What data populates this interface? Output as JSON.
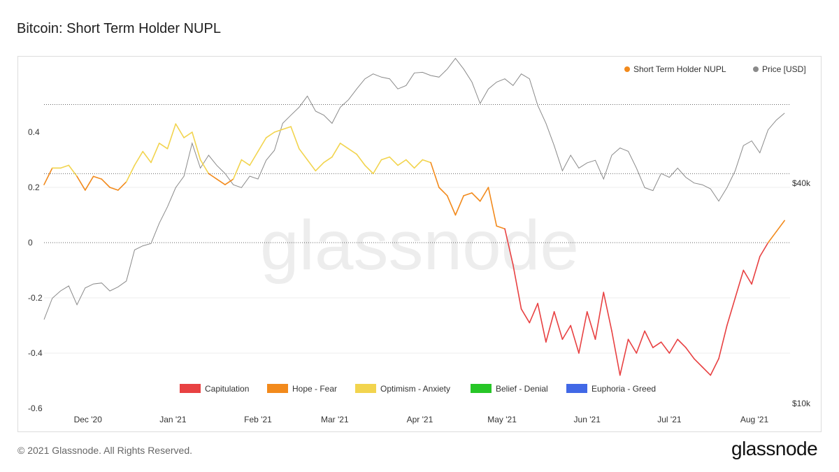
{
  "page": {
    "title": "Bitcoin: Short Term Holder NUPL",
    "copyright": "© 2021 Glassnode. All Rights Reserved.",
    "brand": "glassnode",
    "watermark": "glassnode"
  },
  "colors": {
    "price": "#8a8a8a",
    "capitulation": "#e84142",
    "hope_fear": "#f28a1c",
    "optimism_anxiety": "#f2d44e",
    "belief_denial": "#27c627",
    "euphoria_greed": "#4168e6",
    "grid": "#333333"
  },
  "chart_data": {
    "type": "line",
    "title": "Bitcoin: Short Term Holder NUPL",
    "x_axis": {
      "range": [
        "2020-11-15",
        "2021-08-14"
      ],
      "ticks": [
        "Dec '20",
        "Jan '21",
        "Feb '21",
        "Mar '21",
        "Apr '21",
        "May '21",
        "Jun '21",
        "Jul '21",
        "Aug '21"
      ]
    },
    "y_left": {
      "range": [
        -0.6,
        0.6
      ],
      "ticks": [
        "0.4",
        "0.2",
        "0",
        "-0.2",
        "-0.4",
        "-0.6"
      ]
    },
    "y_right": {
      "scale": "log",
      "range_usd": [
        10000,
        50000
      ],
      "ticks": [
        "$40k",
        "$10k"
      ]
    },
    "grid": "dotted horizontal",
    "legend_top": [
      "Short Term Holder NUPL",
      "Price [USD]"
    ],
    "legend_bottom": [
      "Capitulation",
      "Hope - Fear",
      "Optimism - Anxiety",
      "Belief - Denial",
      "Euphoria - Greed"
    ],
    "zones": [
      {
        "name": "Capitulation",
        "max": 0
      },
      {
        "name": "Hope - Fear",
        "min": 0,
        "max": 0.25
      },
      {
        "name": "Optimism - Anxiety",
        "min": 0.25,
        "max": 0.5
      },
      {
        "name": "Belief - Denial",
        "min": 0.5,
        "max": 0.75
      },
      {
        "name": "Euphoria - Greed",
        "min": 0.75
      }
    ],
    "series": [
      {
        "name": "Short Term Holder NUPL",
        "x": [
          "2020-11-15",
          "2020-11-18",
          "2020-11-21",
          "2020-11-24",
          "2020-11-27",
          "2020-11-30",
          "2020-12-03",
          "2020-12-06",
          "2020-12-09",
          "2020-12-12",
          "2020-12-15",
          "2020-12-18",
          "2020-12-21",
          "2020-12-24",
          "2020-12-27",
          "2020-12-30",
          "2021-01-02",
          "2021-01-05",
          "2021-01-08",
          "2021-01-11",
          "2021-01-14",
          "2021-01-17",
          "2021-01-20",
          "2021-01-23",
          "2021-01-26",
          "2021-01-29",
          "2021-02-01",
          "2021-02-04",
          "2021-02-07",
          "2021-02-10",
          "2021-02-13",
          "2021-02-16",
          "2021-02-19",
          "2021-02-22",
          "2021-02-25",
          "2021-02-28",
          "2021-03-03",
          "2021-03-06",
          "2021-03-09",
          "2021-03-12",
          "2021-03-15",
          "2021-03-18",
          "2021-03-21",
          "2021-03-24",
          "2021-03-27",
          "2021-03-30",
          "2021-04-02",
          "2021-04-05",
          "2021-04-08",
          "2021-04-11",
          "2021-04-14",
          "2021-04-17",
          "2021-04-20",
          "2021-04-23",
          "2021-04-26",
          "2021-04-29",
          "2021-05-02",
          "2021-05-05",
          "2021-05-08",
          "2021-05-11",
          "2021-05-14",
          "2021-05-17",
          "2021-05-20",
          "2021-05-23",
          "2021-05-26",
          "2021-05-29",
          "2021-06-01",
          "2021-06-04",
          "2021-06-07",
          "2021-06-10",
          "2021-06-13",
          "2021-06-16",
          "2021-06-19",
          "2021-06-22",
          "2021-06-25",
          "2021-06-28",
          "2021-07-01",
          "2021-07-04",
          "2021-07-07",
          "2021-07-10",
          "2021-07-13",
          "2021-07-16",
          "2021-07-19",
          "2021-07-22",
          "2021-07-25",
          "2021-07-28",
          "2021-07-31",
          "2021-08-03",
          "2021-08-06",
          "2021-08-09",
          "2021-08-12"
        ],
        "values": [
          0.21,
          0.27,
          0.27,
          0.28,
          0.24,
          0.19,
          0.24,
          0.23,
          0.2,
          0.19,
          0.22,
          0.28,
          0.33,
          0.29,
          0.36,
          0.34,
          0.43,
          0.38,
          0.4,
          0.3,
          0.25,
          0.23,
          0.21,
          0.23,
          0.3,
          0.28,
          0.33,
          0.38,
          0.4,
          0.41,
          0.42,
          0.34,
          0.3,
          0.26,
          0.29,
          0.31,
          0.36,
          0.34,
          0.32,
          0.28,
          0.25,
          0.3,
          0.31,
          0.28,
          0.3,
          0.27,
          0.3,
          0.29,
          0.2,
          0.17,
          0.1,
          0.17,
          0.18,
          0.15,
          0.2,
          0.06,
          0.05,
          -0.08,
          -0.24,
          -0.29,
          -0.22,
          -0.36,
          -0.25,
          -0.35,
          -0.3,
          -0.4,
          -0.25,
          -0.35,
          -0.18,
          -0.32,
          -0.48,
          -0.35,
          -0.4,
          -0.32,
          -0.38,
          -0.36,
          -0.4,
          -0.35,
          -0.38,
          -0.42,
          -0.45,
          -0.48,
          -0.42,
          -0.3,
          -0.2,
          -0.1,
          -0.15,
          -0.05,
          0.0,
          0.04,
          0.08
        ]
      },
      {
        "name": "Price [USD]",
        "x": [
          "2020-11-15",
          "2020-11-18",
          "2020-11-21",
          "2020-11-24",
          "2020-11-27",
          "2020-11-30",
          "2020-12-03",
          "2020-12-06",
          "2020-12-09",
          "2020-12-12",
          "2020-12-15",
          "2020-12-18",
          "2020-12-21",
          "2020-12-24",
          "2020-12-27",
          "2020-12-30",
          "2021-01-02",
          "2021-01-05",
          "2021-01-08",
          "2021-01-11",
          "2021-01-14",
          "2021-01-17",
          "2021-01-20",
          "2021-01-23",
          "2021-01-26",
          "2021-01-29",
          "2021-02-01",
          "2021-02-04",
          "2021-02-07",
          "2021-02-10",
          "2021-02-13",
          "2021-02-16",
          "2021-02-19",
          "2021-02-22",
          "2021-02-25",
          "2021-02-28",
          "2021-03-03",
          "2021-03-06",
          "2021-03-09",
          "2021-03-12",
          "2021-03-15",
          "2021-03-18",
          "2021-03-21",
          "2021-03-24",
          "2021-03-27",
          "2021-03-30",
          "2021-04-02",
          "2021-04-05",
          "2021-04-08",
          "2021-04-11",
          "2021-04-14",
          "2021-04-17",
          "2021-04-20",
          "2021-04-23",
          "2021-04-26",
          "2021-04-29",
          "2021-05-02",
          "2021-05-05",
          "2021-05-08",
          "2021-05-11",
          "2021-05-14",
          "2021-05-17",
          "2021-05-20",
          "2021-05-23",
          "2021-05-26",
          "2021-05-29",
          "2021-06-01",
          "2021-06-04",
          "2021-06-07",
          "2021-06-10",
          "2021-06-13",
          "2021-06-16",
          "2021-06-19",
          "2021-06-22",
          "2021-06-25",
          "2021-06-28",
          "2021-07-01",
          "2021-07-04",
          "2021-07-07",
          "2021-07-10",
          "2021-07-13",
          "2021-07-16",
          "2021-07-19",
          "2021-07-22",
          "2021-07-25",
          "2021-07-28",
          "2021-07-31",
          "2021-08-03",
          "2021-08-06",
          "2021-08-09",
          "2021-08-12"
        ],
        "values": [
          15900,
          17800,
          18500,
          19000,
          17200,
          18800,
          19200,
          19300,
          18500,
          18900,
          19500,
          23000,
          23500,
          23800,
          26500,
          28900,
          32000,
          34000,
          40500,
          35500,
          38000,
          36000,
          34500,
          32500,
          32000,
          34000,
          33500,
          37000,
          39000,
          45000,
          47000,
          49000,
          52000,
          48000,
          47000,
          45000,
          49000,
          51000,
          54000,
          57000,
          58500,
          57500,
          57000,
          54000,
          55000,
          58800,
          59000,
          58000,
          57500,
          60000,
          63500,
          60000,
          56000,
          50000,
          54000,
          56000,
          57000,
          55000,
          58500,
          57000,
          49500,
          45000,
          40000,
          35000,
          38000,
          35500,
          36500,
          37000,
          33500,
          38000,
          39500,
          38800,
          35500,
          32000,
          31500,
          34500,
          33800,
          35500,
          33800,
          32800,
          32500,
          31800,
          29800,
          32000,
          35000,
          40000,
          41000,
          38500,
          43500,
          45800,
          47500
        ]
      }
    ]
  }
}
